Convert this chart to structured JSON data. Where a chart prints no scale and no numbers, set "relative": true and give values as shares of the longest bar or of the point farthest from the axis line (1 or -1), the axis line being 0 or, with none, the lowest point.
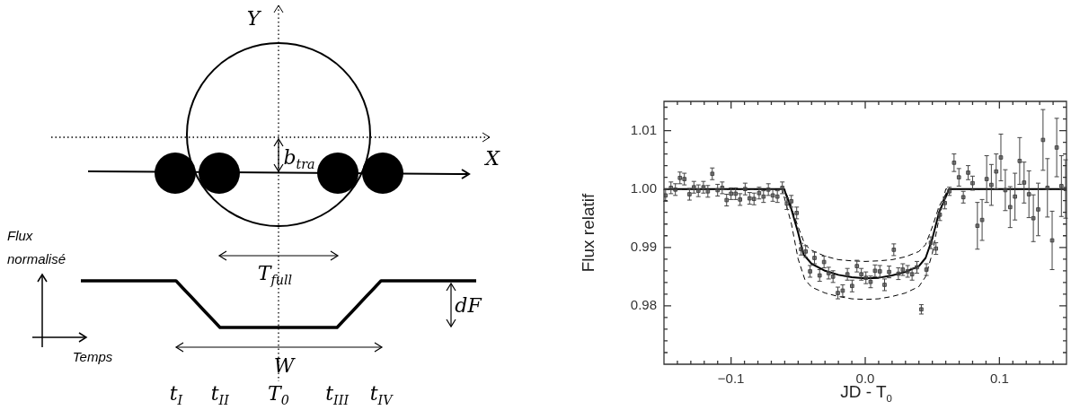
{
  "chart_data": [
    {
      "type": "line",
      "relative": true,
      "xlabel": "Temps",
      "ylabel": "Flux normalisé",
      "categories": [
        null,
        null,
        null,
        null,
        null,
        null,
        null,
        null,
        null,
        null,
        null,
        null,
        null,
        "t$_{I}$",
        null,
        null,
        null,
        null,
        null,
        "t$_{II}$",
        null,
        null,
        null,
        null,
        null,
        null,
        null,
        "T$_{0}$",
        null,
        null,
        null,
        null,
        null,
        null,
        null,
        "t$_{III}$",
        null,
        null,
        null,
        null,
        null,
        "t$_{IV}$",
        null,
        null,
        null,
        null,
        null,
        null,
        null,
        null,
        null,
        null,
        null,
        null,
        null
      ],
      "series": [
        {
          "color": "#000000",
          "values": [
            1,
            1,
            1,
            1,
            1,
            1,
            1,
            1,
            1,
            1,
            1,
            1,
            1,
            1,
            0.833,
            0.667,
            0.5,
            0.333,
            0.167,
            0,
            0,
            0,
            0,
            0,
            0,
            0,
            0,
            0,
            0,
            0,
            0,
            0,
            0,
            0,
            0,
            0,
            0.167,
            0.333,
            0.5,
            0.667,
            0.833,
            1,
            1,
            1,
            1,
            1,
            1,
            1,
            1,
            1,
            1,
            1,
            1,
            1,
            1
          ]
        }
      ],
      "annotations": [
        "Y",
        "X",
        "b$_{tra}$",
        "T$_{full}$",
        "dF",
        "W"
      ]
    },
    {
      "type": "scatter",
      "xlabel": "JD - T$_{0}$",
      "ylabel": "Flux relatif",
      "xlim": [
        -0.15,
        0.15
      ],
      "ylim": [
        0.97,
        1.015
      ],
      "xticks": [
        {
          "value": -0.14,
          "label": null
        },
        {
          "value": -0.13,
          "label": null
        },
        {
          "value": -0.12,
          "label": null
        },
        {
          "value": -0.11,
          "label": null
        },
        {
          "value": -0.1,
          "label": "−0.1"
        },
        {
          "value": -0.09,
          "label": null
        },
        {
          "value": -0.08,
          "label": null
        },
        {
          "value": -0.07,
          "label": null
        },
        {
          "value": -0.06,
          "label": null
        },
        {
          "value": -0.05,
          "label": null
        },
        {
          "value": -0.04,
          "label": null
        },
        {
          "value": -0.03,
          "label": null
        },
        {
          "value": -0.02,
          "label": null
        },
        {
          "value": -0.01,
          "label": null
        },
        {
          "value": 0,
          "label": "0.0"
        },
        {
          "value": 0.01,
          "label": null
        },
        {
          "value": 0.02,
          "label": null
        },
        {
          "value": 0.03,
          "label": null
        },
        {
          "value": 0.04,
          "label": null
        },
        {
          "value": 0.05,
          "label": null
        },
        {
          "value": 0.06,
          "label": null
        },
        {
          "value": 0.07,
          "label": null
        },
        {
          "value": 0.08,
          "label": null
        },
        {
          "value": 0.09,
          "label": null
        },
        {
          "value": 0.1,
          "label": "0.1"
        },
        {
          "value": 0.11,
          "label": null
        },
        {
          "value": 0.12,
          "label": null
        },
        {
          "value": 0.13,
          "label": null
        },
        {
          "value": 0.14,
          "label": null
        }
      ],
      "yticks": [
        {
          "value": 0.972,
          "label": null
        },
        {
          "value": 0.974,
          "label": null
        },
        {
          "value": 0.976,
          "label": null
        },
        {
          "value": 0.978,
          "label": null
        },
        {
          "value": 0.98,
          "label": "0.98"
        },
        {
          "value": 0.982,
          "label": null
        },
        {
          "value": 0.984,
          "label": null
        },
        {
          "value": 0.986,
          "label": null
        },
        {
          "value": 0.988,
          "label": null
        },
        {
          "value": 0.99,
          "label": "0.99"
        },
        {
          "value": 0.992,
          "label": null
        },
        {
          "value": 0.994,
          "label": null
        },
        {
          "value": 0.996,
          "label": null
        },
        {
          "value": 0.998,
          "label": null
        },
        {
          "value": 1.0,
          "label": "1.00"
        },
        {
          "value": 1.002,
          "label": null
        },
        {
          "value": 1.004,
          "label": null
        },
        {
          "value": 1.006,
          "label": null
        },
        {
          "value": 1.008,
          "label": null
        },
        {
          "value": 1.01,
          "label": "1.01"
        },
        {
          "value": 1.012,
          "label": null
        },
        {
          "value": 1.014,
          "label": null
        }
      ],
      "series": [
        {
          "type": "scatter",
          "color": "#444444",
          "marker": "square",
          "x": [
            -0.1488,
            -0.1448,
            -0.1415,
            -0.1381,
            -0.1348,
            -0.131,
            -0.1277,
            -0.1244,
            -0.1206,
            -0.1173,
            -0.114,
            -0.11,
            -0.1066,
            -0.1033,
            -0.1,
            -0.0966,
            -0.0933,
            -0.0895,
            -0.0862,
            -0.0829,
            -0.0791,
            -0.0758,
            -0.0722,
            -0.0689,
            -0.0655,
            -0.0618,
            -0.0584,
            -0.0551,
            -0.0511,
            -0.0478,
            -0.0444,
            -0.0411,
            -0.0378,
            -0.034,
            -0.0307,
            -0.0273,
            -0.024,
            -0.0204,
            -0.0168,
            -0.0133,
            -0.0098,
            -0.0062,
            -0.0029,
            0.0005,
            0.004,
            0.0073,
            0.0109,
            0.0144,
            0.0178,
            0.0213,
            0.0247,
            0.028,
            0.0316,
            0.0349,
            0.0385,
            0.0418,
            0.0456,
            0.0489,
            0.0527,
            0.0556,
            0.0593,
            0.0627,
            0.0662,
            0.0698,
            0.0731,
            0.0767,
            0.08,
            0.0836,
            0.0871,
            0.0905,
            0.094,
            0.0976,
            0.1011,
            0.1044,
            0.108,
            0.1116,
            0.1151,
            0.1184,
            0.122,
            0.1253,
            0.1289,
            0.1325,
            0.1358,
            0.1393,
            0.1427,
            0.1462,
            0.1493
          ],
          "values": [
            0.9989,
            1.0002,
            0.9999,
            1.0019,
            1.0017,
            0.9991,
            1.0003,
            0.9997,
            1.0003,
            0.9996,
            1.0026,
            0.9998,
            1.0002,
            0.9981,
            0.9992,
            0.9992,
            0.9982,
            1.0,
            0.9984,
            0.9983,
            0.9993,
            0.9987,
            0.9999,
            0.9989,
            0.9987,
            1.0002,
            0.9975,
            0.9979,
            0.9959,
            0.9897,
            0.9893,
            0.9859,
            0.9882,
            0.9852,
            0.9875,
            0.9856,
            0.985,
            0.9822,
            0.9826,
            0.9854,
            0.9834,
            0.9868,
            0.9854,
            0.9848,
            0.9841,
            0.986,
            0.9859,
            0.9836,
            0.9858,
            0.9896,
            0.9855,
            0.9862,
            0.9859,
            0.9854,
            0.9866,
            0.9794,
            0.9862,
            0.9908,
            0.9898,
            0.9956,
            0.9976,
            0.9996,
            1.0045,
            1.002,
            0.9986,
            1.0028,
            1.001,
            0.9937,
            0.9947,
            1.0017,
            1.0007,
            1.003,
            1.0054,
            0.9998,
            0.9969,
            0.9987,
            1.0048,
            1.0011,
            0.9991,
            0.995,
            0.9965,
            1.0084,
            1.0002,
            0.9912,
            1.0071,
            1.0005,
            1.0
          ],
          "errors": [
            0.001,
            0.001,
            0.001,
            0.001,
            0.001,
            0.001,
            0.001,
            0.001,
            0.001,
            0.001,
            0.001,
            0.001,
            0.001,
            0.001,
            0.001,
            0.001,
            0.001,
            0.001,
            0.001,
            0.001,
            0.001,
            0.001,
            0.001,
            0.001,
            0.001,
            0.001,
            0.001,
            0.001,
            0.001,
            0.001,
            0.001,
            0.001,
            0.001,
            0.001,
            0.001,
            0.001,
            0.001,
            0.001,
            0.001,
            0.001,
            0.001,
            0.001,
            0.001,
            0.001,
            0.001,
            0.001,
            0.001,
            0.001,
            0.001,
            0.001,
            0.001,
            0.001,
            0.001,
            0.001,
            0.001,
            0.0008,
            0.001,
            0.001,
            0.001,
            0.001,
            0.001,
            0.0007,
            0.0015,
            0.0015,
            0.001,
            0.0012,
            0.0012,
            0.004,
            0.0035,
            0.004,
            0.0035,
            0.003,
            0.004,
            0.0035,
            0.0035,
            0.004,
            0.004,
            0.0035,
            0.004,
            0.004,
            0.0045,
            0.0052,
            0.005,
            0.005,
            0.005,
            0.0052,
            0.005
          ]
        },
        {
          "type": "line",
          "color": "#000000",
          "marker": "none",
          "line_style": "dashed",
          "x": [
            -0.15,
            -0.06,
            -0.05,
            -0.045,
            -0.04,
            -0.03,
            -0.02,
            -0.01,
            0,
            0.01,
            0.02,
            0.03,
            0.04,
            0.045,
            0.05,
            0.055,
            0.062,
            0.15
          ],
          "values": [
            1,
            1,
            0.9935,
            0.9905,
            0.9895,
            0.9885,
            0.9879,
            0.9877,
            0.9876,
            0.9877,
            0.9879,
            0.9884,
            0.9893,
            0.9905,
            0.9935,
            0.997,
            1,
            1
          ]
        },
        {
          "type": "line",
          "color": "#000000",
          "marker": "none",
          "line_style": "dashed",
          "x": [
            -0.15,
            -0.062,
            -0.055,
            -0.05,
            -0.045,
            -0.04,
            -0.03,
            -0.02,
            -0.01,
            0,
            0.01,
            0.02,
            0.03,
            0.04,
            0.045,
            0.05,
            0.055,
            0.06,
            0.15
          ],
          "values": [
            1,
            1,
            0.994,
            0.988,
            0.9845,
            0.9832,
            0.9822,
            0.9816,
            0.9812,
            0.9811,
            0.9812,
            0.9816,
            0.9822,
            0.9833,
            0.985,
            0.989,
            0.995,
            1,
            1
          ]
        },
        {
          "type": "line",
          "color": "#000000",
          "marker": "none",
          "line_style": "solid",
          "x": [
            -0.15,
            -0.0605,
            -0.055,
            -0.05,
            -0.046,
            -0.04,
            -0.03,
            -0.02,
            -0.01,
            0,
            0.01,
            0.02,
            0.03,
            0.04,
            0.045,
            0.05,
            0.055,
            0.0625,
            0.15
          ],
          "values": [
            1,
            1,
            0.9965,
            0.9925,
            0.9888,
            0.9872,
            0.986,
            0.9853,
            0.9849,
            0.9847,
            0.9848,
            0.9852,
            0.9858,
            0.9868,
            0.9882,
            0.9915,
            0.996,
            1,
            1
          ]
        }
      ]
    }
  ]
}
